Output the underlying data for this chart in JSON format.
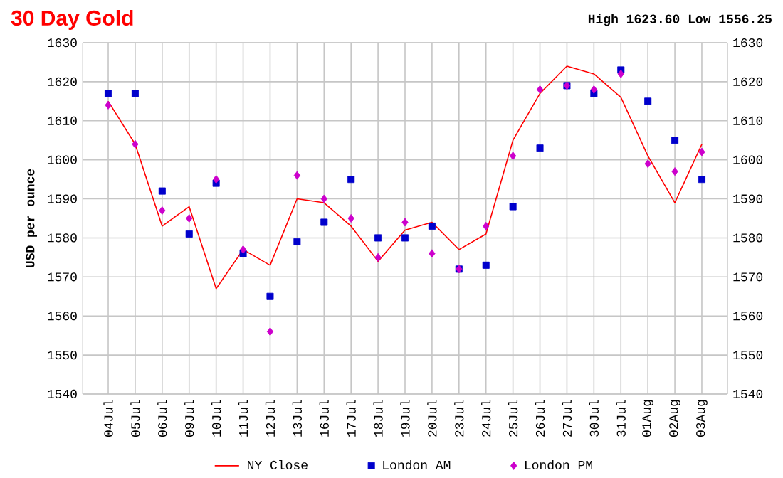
{
  "chart_data": {
    "type": "line",
    "title": "30 Day Gold",
    "subtitle": "High 1623.60 Low 1556.25",
    "ylabel": "USD per ounce",
    "categories": [
      "04Jul",
      "05Jul",
      "06Jul",
      "09Jul",
      "10Jul",
      "11Jul",
      "12Jul",
      "13Jul",
      "16Jul",
      "17Jul",
      "18Jul",
      "19Jul",
      "20Jul",
      "23Jul",
      "24Jul",
      "25Jul",
      "26Jul",
      "27Jul",
      "30Jul",
      "31Jul",
      "01Aug",
      "02Aug",
      "03Aug"
    ],
    "series": [
      {
        "name": "NY Close",
        "color": "#ff0000",
        "marker": "none",
        "values": [
          1615,
          1604,
          1583,
          1588,
          1567,
          1577,
          1573,
          1590,
          1589,
          1583,
          1574,
          1582,
          1584,
          1577,
          1581,
          1605,
          1617,
          1624,
          1622,
          1616,
          1601,
          1589,
          1604
        ]
      },
      {
        "name": "London AM",
        "type": "scatter",
        "color": "#0000cc",
        "marker": "square",
        "values": [
          1617,
          1617,
          1592,
          1581,
          1594,
          1576,
          1565,
          1579,
          1584,
          1595,
          1580,
          1580,
          1583,
          1572,
          1573,
          1588,
          1603,
          1619,
          1617,
          1623,
          1615,
          1605,
          1595
        ]
      },
      {
        "name": "London PM",
        "type": "scatter",
        "color": "#cc00cc",
        "marker": "diamond",
        "values": [
          1614,
          1604,
          1587,
          1585,
          1595,
          1577,
          1556,
          1596,
          1590,
          1585,
          1575,
          1584,
          1576,
          1572,
          1583,
          1601,
          1618,
          1619,
          1618,
          1622,
          1599,
          1597,
          1602
        ]
      }
    ],
    "ylim": [
      1540,
      1630
    ],
    "yticks": [
      1540,
      1550,
      1560,
      1570,
      1580,
      1590,
      1600,
      1610,
      1620,
      1630
    ],
    "y2lim": [
      1540,
      1630
    ],
    "y2ticks": [
      1540,
      1550,
      1560,
      1570,
      1580,
      1590,
      1600,
      1610,
      1620,
      1630
    ],
    "grid": true,
    "legend": "bottom"
  }
}
